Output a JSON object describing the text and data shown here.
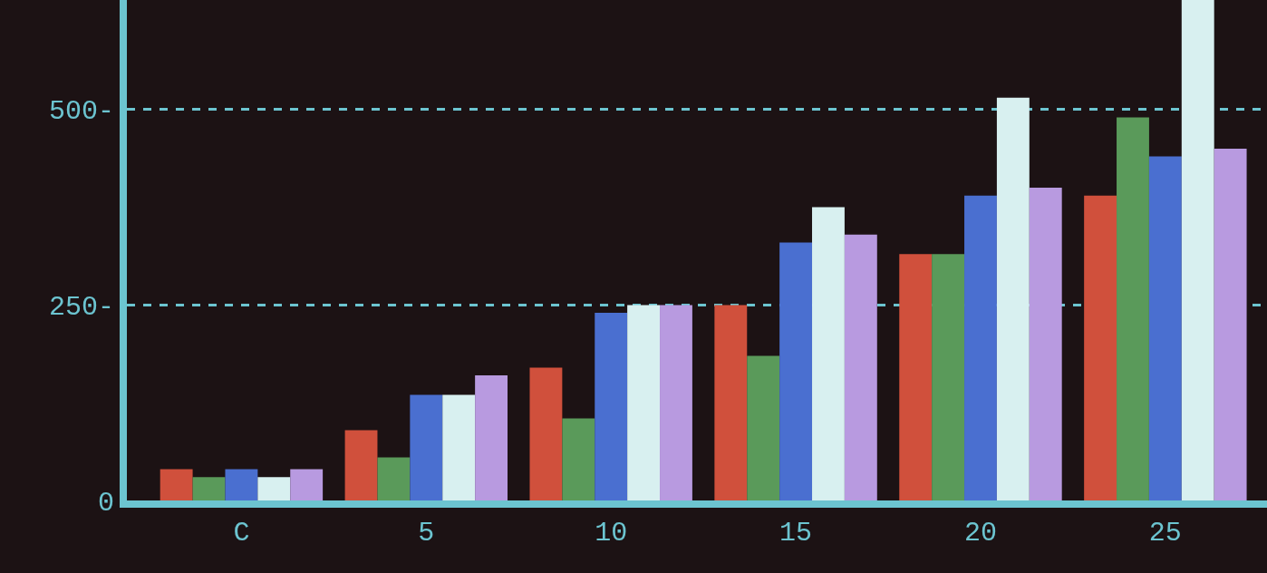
{
  "chart_data": {
    "type": "bar",
    "categories": [
      "C",
      "5",
      "10",
      "15",
      "20",
      "25"
    ],
    "series": [
      {
        "color": "#d0503c",
        "values": [
          40,
          90,
          170,
          250,
          315,
          390
        ]
      },
      {
        "color": "#5a9a5a",
        "values": [
          30,
          55,
          105,
          185,
          315,
          490
        ]
      },
      {
        "color": "#4a6fd0",
        "values": [
          40,
          135,
          240,
          330,
          390,
          440
        ]
      },
      {
        "color": "#d8f0f0",
        "values": [
          30,
          135,
          250,
          375,
          515,
          640
        ]
      },
      {
        "color": "#b89ae0",
        "values": [
          40,
          160,
          250,
          340,
          400,
          450
        ]
      }
    ],
    "ylim": [
      0,
      640
    ],
    "yticks": [
      0,
      {
        "value": 250,
        "label": "250-"
      },
      {
        "value": 500,
        "label": "500-"
      }
    ],
    "grid": "y"
  }
}
